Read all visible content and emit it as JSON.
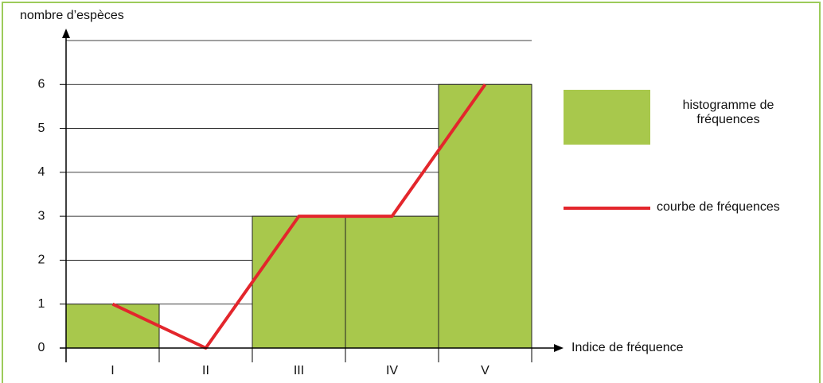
{
  "chart_data": {
    "type": "combo",
    "y_label": "nombre d’espèces",
    "x_label": "Indice de fréquence",
    "categories": [
      "I",
      "II",
      "III",
      "IV",
      "V"
    ],
    "series": [
      {
        "name": "histogramme de fréquences",
        "type": "bar",
        "color": "#a8c84c",
        "values": [
          1,
          0,
          3,
          3,
          6
        ]
      },
      {
        "name": "courbe de fréquences",
        "type": "line",
        "color": "#e3262c",
        "values": [
          1,
          0,
          3,
          3,
          6
        ]
      }
    ],
    "ylim": [
      0,
      7
    ],
    "yticks": [
      0,
      1,
      2,
      3,
      4,
      5,
      6
    ],
    "grid": true
  }
}
